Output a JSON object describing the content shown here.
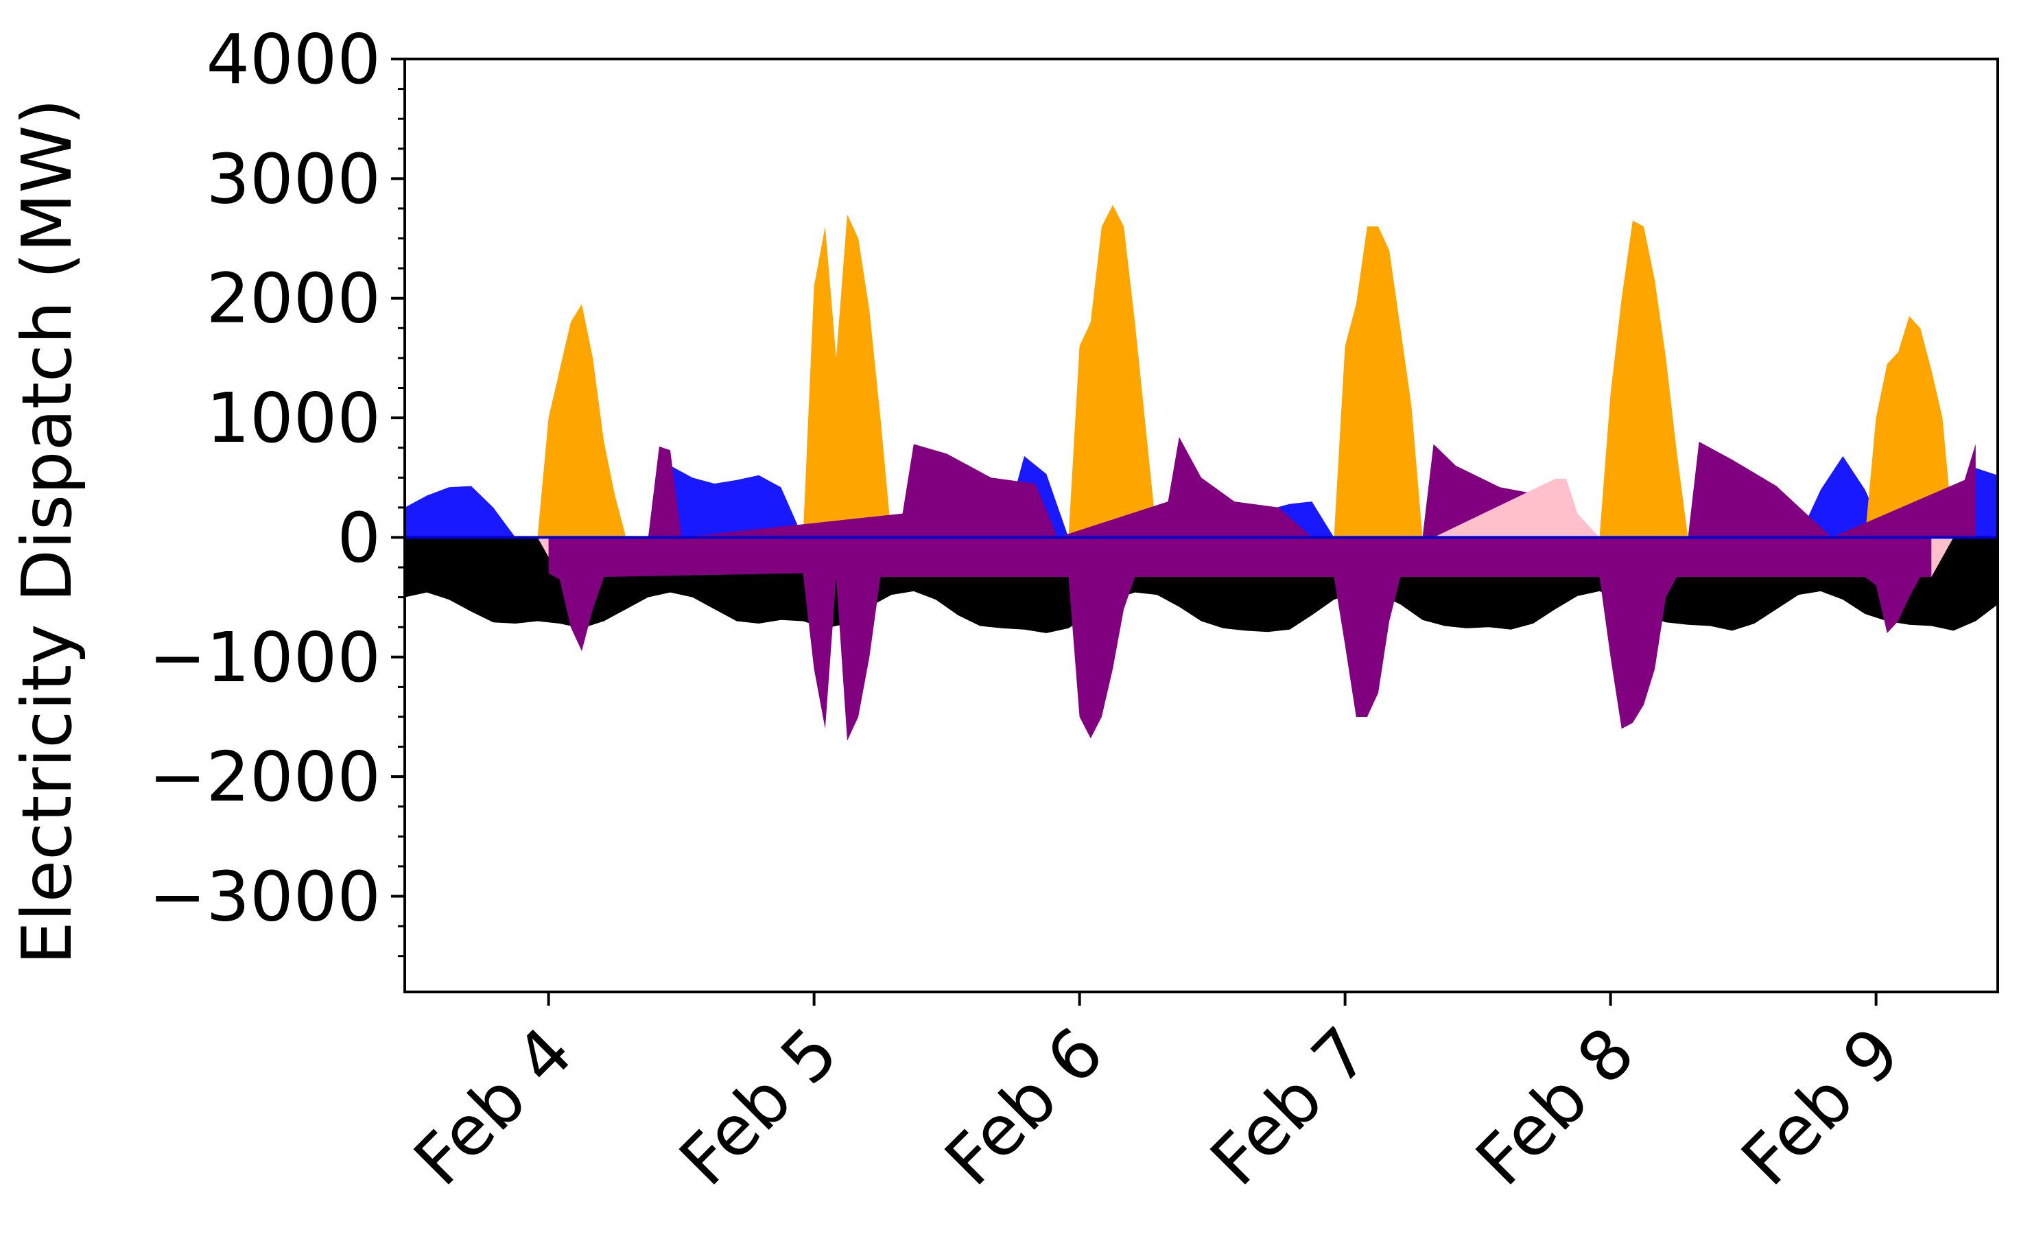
{
  "chart_data": {
    "type": "area",
    "title": "",
    "xlabel": "",
    "ylabel": "Electricity Dispatch (MW)",
    "ylim": [
      -3800,
      4000
    ],
    "xlim": [
      "2023-02-03T11:00",
      "2023-02-09T11:00"
    ],
    "x_tick_labels": [
      "Feb 4",
      "Feb 5",
      "Feb 6",
      "Feb 7",
      "Feb 8",
      "Feb 9"
    ],
    "x_tick_values": [
      "2023-02-04T00:00",
      "2023-02-05T00:00",
      "2023-02-06T00:00",
      "2023-02-07T00:00",
      "2023-02-08T00:00",
      "2023-02-09T00:00"
    ],
    "y_tick_values": [
      -3000,
      -2000,
      -1000,
      0,
      1000,
      2000,
      3000,
      4000
    ],
    "y_tick_labels": [
      "−3000",
      "−2000",
      "−1000",
      "0",
      "1000",
      "2000",
      "3000",
      "4000"
    ],
    "grid": false,
    "legend": "none",
    "zero_line_color": "#0000cc",
    "series": [
      {
        "color": "#000000",
        "baseline": "zero",
        "x": [
          "2023-02-03T11:00",
          "2023-02-03T13:00",
          "2023-02-03T15:00",
          "2023-02-03T17:00",
          "2023-02-03T19:00",
          "2023-02-03T21:00",
          "2023-02-03T23:00",
          "2023-02-04T01:00",
          "2023-02-04T03:00",
          "2023-02-04T05:00",
          "2023-02-04T07:00",
          "2023-02-04T09:00",
          "2023-02-04T11:00",
          "2023-02-04T13:00",
          "2023-02-04T15:00",
          "2023-02-04T17:00",
          "2023-02-04T19:00",
          "2023-02-04T21:00",
          "2023-02-04T23:00",
          "2023-02-05T01:00",
          "2023-02-05T03:00",
          "2023-02-05T05:00",
          "2023-02-05T07:00",
          "2023-02-05T09:00",
          "2023-02-05T11:00",
          "2023-02-05T13:00",
          "2023-02-05T15:00",
          "2023-02-05T17:00",
          "2023-02-05T19:00",
          "2023-02-05T21:00",
          "2023-02-05T23:00",
          "2023-02-06T01:00",
          "2023-02-06T03:00",
          "2023-02-06T05:00",
          "2023-02-06T07:00",
          "2023-02-06T09:00",
          "2023-02-06T11:00",
          "2023-02-06T13:00",
          "2023-02-06T15:00",
          "2023-02-06T17:00",
          "2023-02-06T19:00",
          "2023-02-06T21:00",
          "2023-02-06T23:00",
          "2023-02-07T01:00",
          "2023-02-07T03:00",
          "2023-02-07T05:00",
          "2023-02-07T07:00",
          "2023-02-07T09:00",
          "2023-02-07T11:00",
          "2023-02-07T13:00",
          "2023-02-07T15:00",
          "2023-02-07T17:00",
          "2023-02-07T19:00",
          "2023-02-07T21:00",
          "2023-02-07T23:00",
          "2023-02-08T01:00",
          "2023-02-08T03:00",
          "2023-02-08T05:00",
          "2023-02-08T07:00",
          "2023-02-08T09:00",
          "2023-02-08T11:00",
          "2023-02-08T13:00",
          "2023-02-08T15:00",
          "2023-02-08T17:00",
          "2023-02-08T19:00",
          "2023-02-08T21:00",
          "2023-02-08T23:00",
          "2023-02-09T01:00",
          "2023-02-09T03:00",
          "2023-02-09T05:00",
          "2023-02-09T07:00",
          "2023-02-09T09:00",
          "2023-02-09T11:00"
        ],
        "y": [
          -500,
          -460,
          -520,
          -620,
          -710,
          -720,
          -700,
          -720,
          -760,
          -700,
          -600,
          -500,
          -460,
          -500,
          -600,
          -700,
          -720,
          -690,
          -700,
          -760,
          -720,
          -580,
          -480,
          -450,
          -520,
          -650,
          -740,
          -760,
          -770,
          -800,
          -760,
          -640,
          -520,
          -460,
          -480,
          -580,
          -700,
          -760,
          -780,
          -790,
          -770,
          -650,
          -520,
          -460,
          -470,
          -560,
          -690,
          -740,
          -760,
          -750,
          -770,
          -720,
          -600,
          -490,
          -450,
          -520,
          -650,
          -710,
          -730,
          -740,
          -780,
          -720,
          -600,
          -480,
          -450,
          -520,
          -640,
          -700,
          -730,
          -740,
          -780,
          -700,
          -560
        ]
      },
      {
        "color": "#1919ff",
        "baseline": "zero",
        "x": [
          "2023-02-03T11:00",
          "2023-02-03T13:00",
          "2023-02-03T15:00",
          "2023-02-03T17:00",
          "2023-02-03T19:00",
          "2023-02-03T21:00",
          "2023-02-03T23:00",
          "2023-02-04T01:00",
          "2023-02-04T03:00",
          "2023-02-04T05:00",
          "2023-02-04T07:00",
          "2023-02-04T09:00",
          "2023-02-04T11:00",
          "2023-02-04T13:00",
          "2023-02-04T15:00",
          "2023-02-04T17:00",
          "2023-02-04T19:00",
          "2023-02-04T21:00",
          "2023-02-04T23:00",
          "2023-02-05T01:00",
          "2023-02-05T03:00",
          "2023-02-05T05:00",
          "2023-02-05T07:00",
          "2023-02-05T09:00",
          "2023-02-05T11:00",
          "2023-02-05T13:00",
          "2023-02-05T15:00",
          "2023-02-05T17:00",
          "2023-02-05T19:00",
          "2023-02-05T21:00",
          "2023-02-05T23:00",
          "2023-02-06T01:00",
          "2023-02-06T03:00",
          "2023-02-06T05:00",
          "2023-02-06T07:00",
          "2023-02-06T09:00",
          "2023-02-06T11:00",
          "2023-02-06T13:00",
          "2023-02-06T15:00",
          "2023-02-06T17:00",
          "2023-02-06T19:00",
          "2023-02-06T21:00",
          "2023-02-06T23:00",
          "2023-02-07T01:00",
          "2023-02-07T03:00",
          "2023-02-07T05:00",
          "2023-02-07T07:00",
          "2023-02-07T09:00",
          "2023-02-07T11:00",
          "2023-02-07T13:00",
          "2023-02-07T15:00",
          "2023-02-07T17:00",
          "2023-02-07T19:00",
          "2023-02-07T21:00",
          "2023-02-07T23:00",
          "2023-02-08T01:00",
          "2023-02-08T03:00",
          "2023-02-08T05:00",
          "2023-02-08T07:00",
          "2023-02-08T09:00",
          "2023-02-08T11:00",
          "2023-02-08T13:00",
          "2023-02-08T15:00",
          "2023-02-08T17:00",
          "2023-02-08T19:00",
          "2023-02-08T21:00",
          "2023-02-08T23:00",
          "2023-02-09T01:00",
          "2023-02-09T03:00",
          "2023-02-09T05:00",
          "2023-02-09T07:00",
          "2023-02-09T09:00",
          "2023-02-09T11:00"
        ],
        "y": [
          250,
          350,
          420,
          430,
          250,
          0,
          0,
          0,
          0,
          0,
          0,
          0,
          600,
          500,
          450,
          480,
          520,
          420,
          0,
          0,
          0,
          0,
          0,
          0,
          0,
          0,
          0,
          0,
          680,
          530,
          0,
          0,
          0,
          0,
          0,
          0,
          0,
          250,
          240,
          230,
          280,
          300,
          0,
          0,
          0,
          0,
          0,
          0,
          150,
          60,
          50,
          50,
          70,
          40,
          0,
          0,
          0,
          0,
          0,
          0,
          0,
          0,
          0,
          0,
          400,
          680,
          400,
          0,
          0,
          0,
          0,
          580,
          520
        ]
      },
      {
        "color": "#ffa500",
        "baseline": "zero",
        "x": [
          "2023-02-03T23:00",
          "2023-02-04T00:00",
          "2023-02-04T01:00",
          "2023-02-04T02:00",
          "2023-02-04T03:00",
          "2023-02-04T04:00",
          "2023-02-04T05:00",
          "2023-02-04T06:00",
          "2023-02-04T07:00",
          "2023-02-04T23:00",
          "2023-02-05T00:00",
          "2023-02-05T01:00",
          "2023-02-05T02:00",
          "2023-02-05T03:00",
          "2023-02-05T04:00",
          "2023-02-05T05:00",
          "2023-02-05T06:00",
          "2023-02-05T07:00",
          "2023-02-05T23:00",
          "2023-02-06T00:00",
          "2023-02-06T01:00",
          "2023-02-06T02:00",
          "2023-02-06T03:00",
          "2023-02-06T04:00",
          "2023-02-06T05:00",
          "2023-02-06T06:00",
          "2023-02-06T07:00",
          "2023-02-06T23:00",
          "2023-02-07T00:00",
          "2023-02-07T01:00",
          "2023-02-07T02:00",
          "2023-02-07T03:00",
          "2023-02-07T04:00",
          "2023-02-07T05:00",
          "2023-02-07T06:00",
          "2023-02-07T07:00",
          "2023-02-07T23:00",
          "2023-02-08T00:00",
          "2023-02-08T01:00",
          "2023-02-08T02:00",
          "2023-02-08T03:00",
          "2023-02-08T04:00",
          "2023-02-08T05:00",
          "2023-02-08T06:00",
          "2023-02-08T07:00",
          "2023-02-08T23:00",
          "2023-02-09T00:00",
          "2023-02-09T01:00",
          "2023-02-09T02:00",
          "2023-02-09T03:00",
          "2023-02-09T04:00",
          "2023-02-09T05:00",
          "2023-02-09T06:00",
          "2023-02-09T07:00"
        ],
        "y": [
          0,
          1000,
          1400,
          1800,
          1950,
          1500,
          800,
          350,
          0,
          0,
          2100,
          2600,
          1500,
          2700,
          2500,
          1900,
          1000,
          0,
          0,
          1600,
          1800,
          2600,
          2780,
          2600,
          1800,
          900,
          0,
          0,
          1600,
          1950,
          2600,
          2600,
          2400,
          1750,
          1100,
          0,
          0,
          1200,
          2000,
          2650,
          2600,
          2150,
          1500,
          700,
          0,
          0,
          1000,
          1450,
          1550,
          1850,
          1750,
          1400,
          1000,
          0
        ]
      },
      {
        "color": "#800080",
        "baseline": "zero",
        "x": [
          "2023-02-04T09:00",
          "2023-02-04T10:00",
          "2023-02-04T11:00",
          "2023-02-04T12:00",
          "2023-02-05T08:00",
          "2023-02-05T09:00",
          "2023-02-05T12:00",
          "2023-02-05T16:00",
          "2023-02-05T20:00",
          "2023-02-05T22:00",
          "2023-02-06T08:00",
          "2023-02-06T09:00",
          "2023-02-06T11:00",
          "2023-02-06T14:00",
          "2023-02-06T18:00",
          "2023-02-06T21:00",
          "2023-02-07T07:00",
          "2023-02-07T08:00",
          "2023-02-07T10:00",
          "2023-02-07T14:00",
          "2023-02-07T18:00",
          "2023-02-07T21:00",
          "2023-02-08T07:00",
          "2023-02-08T08:00",
          "2023-02-08T11:00",
          "2023-02-08T15:00",
          "2023-02-08T20:00",
          "2023-02-09T08:00",
          "2023-02-09T09:00"
        ],
        "y": [
          0,
          760,
          730,
          0,
          200,
          780,
          700,
          500,
          450,
          0,
          300,
          840,
          500,
          300,
          250,
          0,
          0,
          780,
          600,
          420,
          350,
          0,
          0,
          800,
          650,
          430,
          0,
          480,
          780
        ]
      },
      {
        "color": "#ffc0cb",
        "baseline": "zero",
        "x": [
          "2023-02-03T23:00",
          "2023-02-04T01:00",
          "2023-02-04T05:00",
          "2023-02-04T07:00",
          "2023-02-04T22:00",
          "2023-02-05T01:00",
          "2023-02-05T05:00",
          "2023-02-05T08:00",
          "2023-02-05T22:00",
          "2023-02-06T01:00",
          "2023-02-06T05:00",
          "2023-02-06T08:00",
          "2023-02-06T22:00",
          "2023-02-07T01:00",
          "2023-02-07T05:00",
          "2023-02-07T08:00",
          "2023-02-07T19:00",
          "2023-02-07T20:00",
          "2023-02-07T21:00",
          "2023-02-07T23:00",
          "2023-02-08T01:00",
          "2023-02-08T05:00",
          "2023-02-08T08:00",
          "2023-02-08T23:00",
          "2023-02-09T01:00",
          "2023-02-09T05:00",
          "2023-02-09T07:00"
        ],
        "y": [
          0,
          -330,
          -330,
          0,
          0,
          -330,
          -330,
          0,
          0,
          -330,
          -330,
          0,
          0,
          -330,
          -330,
          0,
          490,
          490,
          200,
          0,
          -330,
          -330,
          0,
          0,
          -330,
          -330,
          0
        ]
      },
      {
        "color": "#800080",
        "baseline": "zero",
        "x": [
          "2023-02-04T00:00",
          "2023-02-04T01:00",
          "2023-02-04T02:00",
          "2023-02-04T03:00",
          "2023-02-04T04:00",
          "2023-02-04T05:00",
          "2023-02-04T23:00",
          "2023-02-05T00:00",
          "2023-02-05T01:00",
          "2023-02-05T02:00",
          "2023-02-05T03:00",
          "2023-02-05T04:00",
          "2023-02-05T05:00",
          "2023-02-05T06:00",
          "2023-02-05T23:00",
          "2023-02-06T00:00",
          "2023-02-06T01:00",
          "2023-02-06T02:00",
          "2023-02-06T03:00",
          "2023-02-06T04:00",
          "2023-02-06T05:00",
          "2023-02-06T23:00",
          "2023-02-07T00:00",
          "2023-02-07T01:00",
          "2023-02-07T02:00",
          "2023-02-07T03:00",
          "2023-02-07T04:00",
          "2023-02-07T05:00",
          "2023-02-07T23:00",
          "2023-02-08T00:00",
          "2023-02-08T01:00",
          "2023-02-08T02:00",
          "2023-02-08T03:00",
          "2023-02-08T04:00",
          "2023-02-08T05:00",
          "2023-02-08T06:00",
          "2023-02-08T23:00",
          "2023-02-09T00:00",
          "2023-02-09T01:00",
          "2023-02-09T02:00",
          "2023-02-09T03:00",
          "2023-02-09T04:00",
          "2023-02-09T05:00"
        ],
        "y": [
          -300,
          -350,
          -750,
          -950,
          -600,
          -330,
          -300,
          -1100,
          -1600,
          -330,
          -1700,
          -1500,
          -1000,
          -330,
          -330,
          -1500,
          -1680,
          -1500,
          -1100,
          -600,
          -330,
          -330,
          -900,
          -1500,
          -1500,
          -1300,
          -700,
          -330,
          -330,
          -1000,
          -1600,
          -1550,
          -1400,
          -1100,
          -500,
          -330,
          -330,
          -400,
          -800,
          -700,
          -500,
          -330,
          -330
        ]
      }
    ]
  }
}
